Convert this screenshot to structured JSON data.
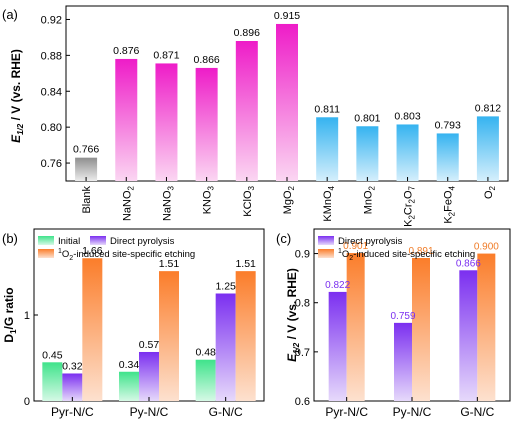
{
  "chart_data": [
    {
      "type": "bar",
      "panel_label": "(a)",
      "ylabel_main": "E",
      "ylabel_sub": "1/2",
      "ylabel_rest": " / V (vs. RHE)",
      "ylim": [
        0.74,
        0.935
      ],
      "yticks": [
        "0.76",
        "0.80",
        "0.84",
        "0.88",
        "0.92"
      ],
      "categories": [
        {
          "main": "Blank",
          "parts": [
            {
              "t": "Blank",
              "sub": false
            }
          ]
        },
        {
          "main": "NaNO2",
          "parts": [
            {
              "t": "NaNO",
              "sub": false
            },
            {
              "t": "2",
              "sub": true
            }
          ]
        },
        {
          "main": "NaNO3",
          "parts": [
            {
              "t": "NaNO",
              "sub": false
            },
            {
              "t": "3",
              "sub": true
            }
          ]
        },
        {
          "main": "KNO3",
          "parts": [
            {
              "t": "KNO",
              "sub": false
            },
            {
              "t": "3",
              "sub": true
            }
          ]
        },
        {
          "main": "KClO3",
          "parts": [
            {
              "t": "KClO",
              "sub": false
            },
            {
              "t": "3",
              "sub": true
            }
          ]
        },
        {
          "main": "MgO2",
          "parts": [
            {
              "t": "MgO",
              "sub": false
            },
            {
              "t": "2",
              "sub": true
            }
          ]
        },
        {
          "main": "KMnO4",
          "parts": [
            {
              "t": "KMnO",
              "sub": false
            },
            {
              "t": "4",
              "sub": true
            }
          ]
        },
        {
          "main": "MnO2",
          "parts": [
            {
              "t": "MnO",
              "sub": false
            },
            {
              "t": "2",
              "sub": true
            }
          ]
        },
        {
          "main": "K2Cr2O7",
          "parts": [
            {
              "t": "K",
              "sub": false
            },
            {
              "t": "2",
              "sub": true
            },
            {
              "t": "Cr",
              "sub": false
            },
            {
              "t": "2",
              "sub": true
            },
            {
              "t": "O",
              "sub": false
            },
            {
              "t": "7",
              "sub": true
            }
          ]
        },
        {
          "main": "K2FeO4",
          "parts": [
            {
              "t": "K",
              "sub": false
            },
            {
              "t": "2",
              "sub": true
            },
            {
              "t": "FeO",
              "sub": false
            },
            {
              "t": "4",
              "sub": true
            }
          ]
        },
        {
          "main": "O2",
          "parts": [
            {
              "t": "O",
              "sub": false
            },
            {
              "t": "2",
              "sub": true
            }
          ]
        }
      ],
      "values": [
        0.766,
        0.876,
        0.871,
        0.866,
        0.896,
        0.915,
        0.811,
        0.801,
        0.803,
        0.793,
        0.812
      ],
      "value_labels": [
        "0.766",
        "0.876",
        "0.871",
        "0.866",
        "0.896",
        "0.915",
        "0.811",
        "0.801",
        "0.803",
        "0.793",
        "0.812"
      ],
      "bar_groups": [
        "gray",
        "magenta",
        "magenta",
        "magenta",
        "magenta",
        "magenta",
        "blue",
        "blue",
        "blue",
        "blue",
        "blue"
      ],
      "colors": {
        "gray": [
          "#8f8f8f",
          "#ececec"
        ],
        "magenta": [
          "#ee1cc8",
          "#fbd6f2"
        ],
        "blue": [
          "#35b3f0",
          "#d5effc"
        ]
      }
    },
    {
      "type": "bar",
      "panel_label": "(b)",
      "ylabel_main": "D",
      "ylabel_sub": "1",
      "ylabel_rest": "/G ratio",
      "ylim": [
        0,
        2
      ],
      "yticks": [
        "0",
        "1"
      ],
      "categories": [
        "Pyr-N/C",
        "Py-N/C",
        "G-N/C"
      ],
      "legend": {
        "initial": "Initial",
        "direct": "Direct pyrolysis",
        "etch_sup": "1",
        "etch_main": "O",
        "etch_sub": "2",
        "etch_rest": "-induced site-specific etching"
      },
      "series": [
        {
          "key": "initial",
          "values": [
            0.45,
            0.34,
            0.48
          ],
          "labels": [
            "0.45",
            "0.34",
            "0.48"
          ]
        },
        {
          "key": "direct",
          "values": [
            0.32,
            0.57,
            1.25
          ],
          "labels": [
            "0.32",
            "0.57",
            "1.25"
          ]
        },
        {
          "key": "etch",
          "values": [
            1.66,
            1.51,
            1.51
          ],
          "labels": [
            "1.66",
            "1.51",
            "1.51"
          ]
        }
      ],
      "colors": {
        "initial": [
          "#3fe38b",
          "#d6f9e6"
        ],
        "direct": [
          "#7b2ff0",
          "#e6d9fb"
        ],
        "etch": [
          "#fb7d2a",
          "#fde1cf"
        ]
      }
    },
    {
      "type": "bar",
      "panel_label": "(c)",
      "ylabel_main": "E",
      "ylabel_sub": "1/2",
      "ylabel_rest": " / V (vs. RHE)",
      "ylim": [
        0.6,
        0.95
      ],
      "yticks": [
        "0.6",
        "0.7",
        "0.8",
        "0.9"
      ],
      "categories": [
        "Pyr-N/C",
        "Py-N/C",
        "G-N/C"
      ],
      "legend": {
        "direct": "Direct pyrolysis",
        "etch_sup": "1",
        "etch_main": "O",
        "etch_sub": "2",
        "etch_rest": "-induced site-specific etching"
      },
      "series": [
        {
          "key": "direct",
          "values": [
            0.822,
            0.759,
            0.866
          ],
          "labels": [
            "0.822",
            "0.759",
            "0.866"
          ]
        },
        {
          "key": "etch",
          "values": [
            0.901,
            0.891,
            0.9
          ],
          "labels": [
            "0.901",
            "0.891",
            "0.900"
          ]
        }
      ],
      "label_colors": {
        "direct": "#7b2ff0",
        "etch": "#f07c28"
      },
      "colors": {
        "direct": [
          "#7b2ff0",
          "#e6d9fb"
        ],
        "etch": [
          "#fb7d2a",
          "#fde1cf"
        ]
      }
    }
  ]
}
